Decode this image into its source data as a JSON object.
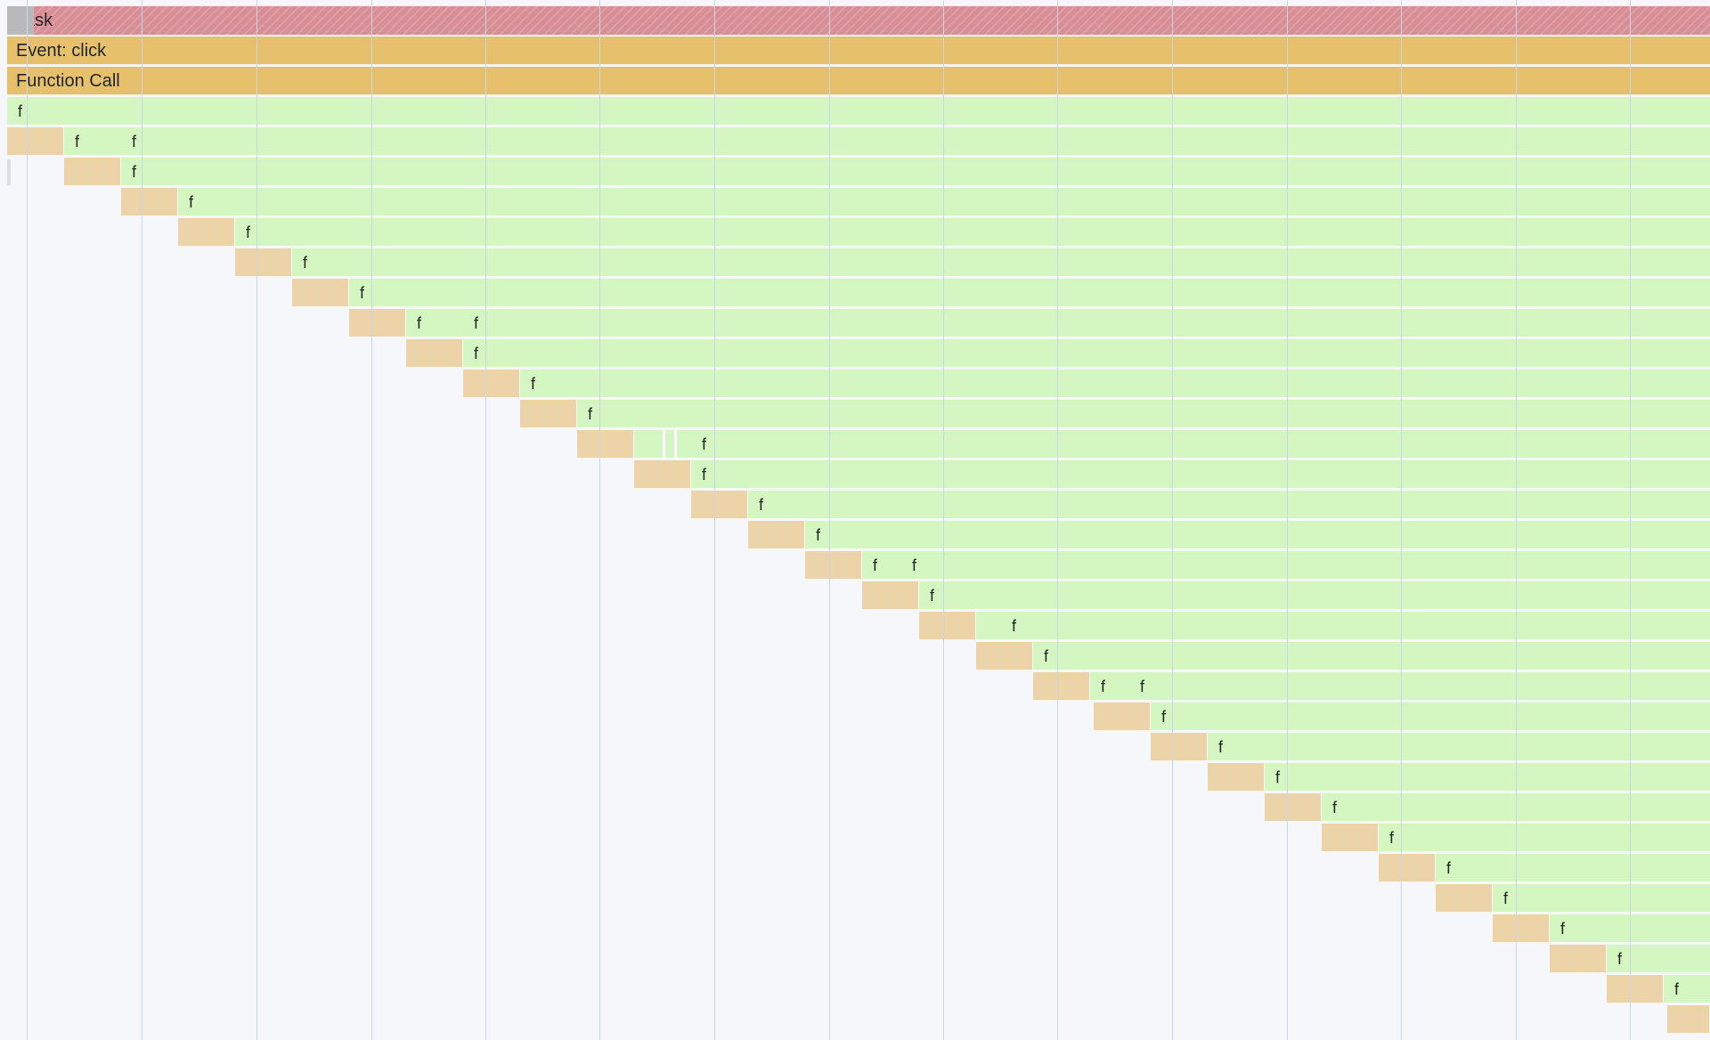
{
  "timeline": {
    "labels": {
      "task": "Task",
      "event_click": "Event: click",
      "function_call": "Function Call",
      "function": "f"
    },
    "colors": {
      "background": "#f6f7fb",
      "task": "#d98d95",
      "task_cap": "#b9b8bb",
      "event_click": "#e6c06a",
      "function_call": "#e6c06a",
      "function_frame": "#d4f7c1",
      "activity_stripe": "#efd3a3",
      "gridline": "#c8d6ea"
    },
    "visible_function_labels": 35
  }
}
